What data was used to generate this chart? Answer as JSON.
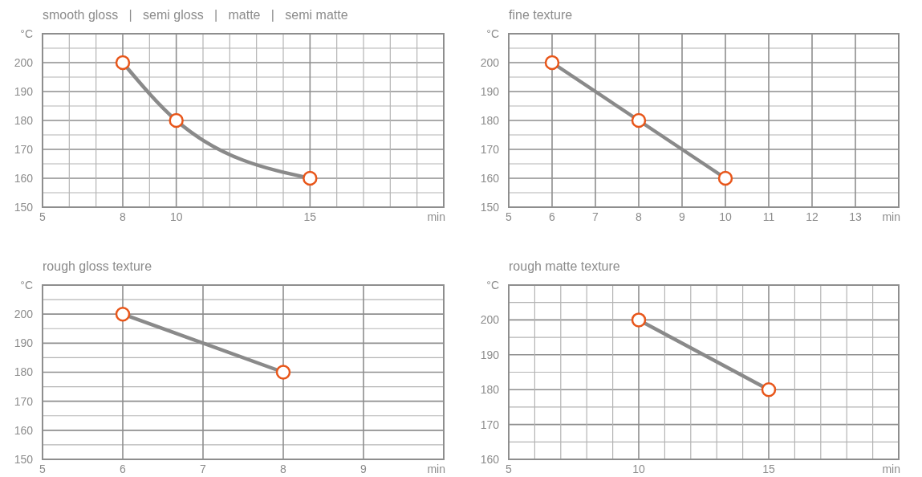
{
  "chart_data": [
    {
      "type": "line",
      "title": "smooth gloss   |   semi gloss   |   matte   |   semi matte",
      "xlabel": "min",
      "ylabel": "°C",
      "x": [
        8,
        10,
        15
      ],
      "series": [
        {
          "color": "#8a8a8a",
          "values": [
            200,
            180,
            160
          ]
        }
      ],
      "xlim": [
        5,
        20
      ],
      "ylim": [
        150,
        210
      ],
      "xticks": [
        5,
        {
          "value": 6,
          "label": null
        },
        {
          "value": 7,
          "label": null
        },
        8,
        {
          "value": 9,
          "label": null
        },
        10,
        {
          "value": 11,
          "label": null
        },
        {
          "value": 12,
          "label": null
        },
        {
          "value": 13,
          "label": null
        },
        {
          "value": 14,
          "label": null
        },
        15,
        {
          "value": 16,
          "label": null
        },
        {
          "value": 17,
          "label": null
        },
        {
          "value": 18,
          "label": null
        },
        {
          "value": 19,
          "label": null
        }
      ],
      "yticks": [
        150,
        {
          "value": 155,
          "label": null
        },
        160,
        {
          "value": 165,
          "label": null
        },
        170,
        {
          "value": 175,
          "label": null
        },
        180,
        {
          "value": 185,
          "label": null
        },
        190,
        {
          "value": 195,
          "label": null
        },
        200,
        {
          "value": 205,
          "label": null
        }
      ],
      "grid": true,
      "marker": "circle"
    },
    {
      "type": "line",
      "title": "fine texture",
      "xlabel": "min",
      "ylabel": "°C",
      "x": [
        6,
        8,
        10
      ],
      "series": [
        {
          "color": "#8a8a8a",
          "values": [
            200,
            180,
            160
          ]
        }
      ],
      "xlim": [
        5,
        14
      ],
      "ylim": [
        150,
        210
      ],
      "xticks": [
        5,
        6,
        7,
        8,
        9,
        10,
        11,
        12,
        13
      ],
      "yticks": [
        150,
        {
          "value": 155,
          "label": null
        },
        160,
        {
          "value": 165,
          "label": null
        },
        170,
        {
          "value": 175,
          "label": null
        },
        180,
        {
          "value": 185,
          "label": null
        },
        190,
        {
          "value": 195,
          "label": null
        },
        200,
        {
          "value": 205,
          "label": null
        }
      ],
      "grid": true,
      "marker": "circle"
    },
    {
      "type": "line",
      "title": "rough gloss texture",
      "xlabel": "min",
      "ylabel": "°C",
      "x": [
        6,
        8
      ],
      "series": [
        {
          "color": "#8a8a8a",
          "values": [
            200,
            180
          ]
        }
      ],
      "xlim": [
        5,
        10
      ],
      "ylim": [
        150,
        210
      ],
      "xticks": [
        5,
        6,
        7,
        8,
        9
      ],
      "yticks": [
        150,
        {
          "value": 155,
          "label": null
        },
        160,
        {
          "value": 165,
          "label": null
        },
        170,
        {
          "value": 175,
          "label": null
        },
        180,
        {
          "value": 185,
          "label": null
        },
        190,
        {
          "value": 195,
          "label": null
        },
        200,
        {
          "value": 205,
          "label": null
        }
      ],
      "grid": true,
      "marker": "circle"
    },
    {
      "type": "line",
      "title": "rough matte texture",
      "xlabel": "min",
      "ylabel": "°C",
      "x": [
        10,
        15
      ],
      "series": [
        {
          "color": "#8a8a8a",
          "values": [
            200,
            180
          ]
        }
      ],
      "xlim": [
        5,
        20
      ],
      "ylim": [
        160,
        210
      ],
      "xticks": [
        5,
        {
          "value": 6,
          "label": null
        },
        {
          "value": 7,
          "label": null
        },
        {
          "value": 8,
          "label": null
        },
        {
          "value": 9,
          "label": null
        },
        10,
        {
          "value": 11,
          "label": null
        },
        {
          "value": 12,
          "label": null
        },
        {
          "value": 13,
          "label": null
        },
        {
          "value": 14,
          "label": null
        },
        15,
        {
          "value": 16,
          "label": null
        },
        {
          "value": 17,
          "label": null
        },
        {
          "value": 18,
          "label": null
        },
        {
          "value": 19,
          "label": null
        }
      ],
      "yticks": [
        160,
        {
          "value": 165,
          "label": null
        },
        170,
        {
          "value": 175,
          "label": null
        },
        180,
        {
          "value": 185,
          "label": null
        },
        190,
        {
          "value": 195,
          "label": null
        },
        200,
        {
          "value": 205,
          "label": null
        }
      ],
      "grid": true,
      "marker": "circle"
    }
  ]
}
